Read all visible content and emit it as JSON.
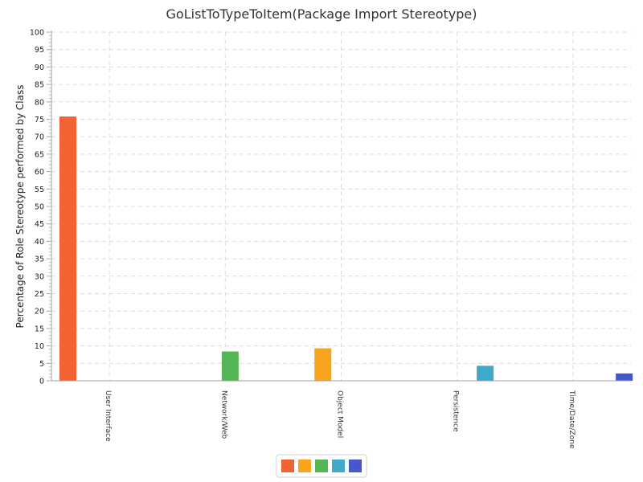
{
  "chart_data": {
    "type": "bar",
    "title": "GoListToTypeToItem(Package Import Stereotype)",
    "xlabel": "",
    "ylabel": "Percentage of Role Stereotype performed by Class",
    "ylim": [
      0,
      100
    ],
    "ytick_step": 5,
    "grid": true,
    "legend_position": "bottom-center",
    "categories": [
      "User Interface",
      "Network/Web",
      "Object Model",
      "Persistence",
      "Time/Date/Zone"
    ],
    "series": [
      {
        "color": "#f26232",
        "values": [
          75.8,
          0,
          0,
          0,
          0
        ]
      },
      {
        "color": "#f9a41e",
        "values": [
          0,
          0,
          9.3,
          0,
          0
        ]
      },
      {
        "color": "#55b556",
        "values": [
          0,
          8.4,
          0,
          0,
          0
        ]
      },
      {
        "color": "#3ea9c8",
        "values": [
          0,
          0,
          0,
          4.3,
          0
        ]
      },
      {
        "color": "#4458cc",
        "values": [
          0,
          0,
          0,
          0,
          2.1
        ]
      }
    ]
  }
}
